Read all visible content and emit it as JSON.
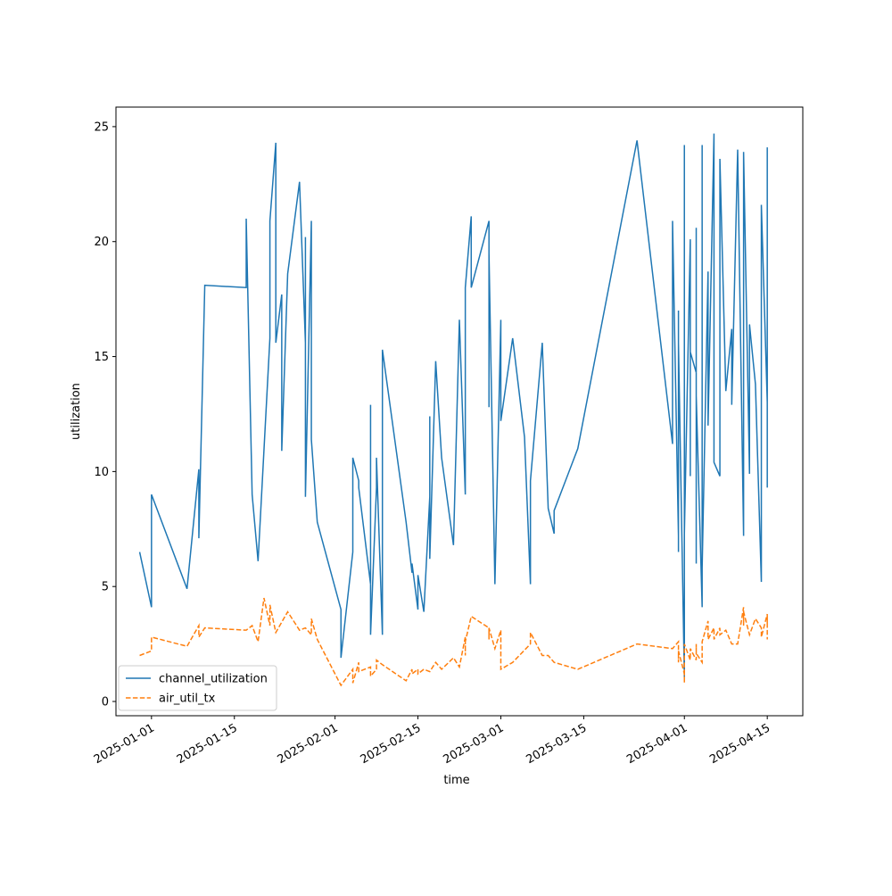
{
  "chart_data": {
    "type": "line",
    "xlabel": "time",
    "ylabel": "utilization",
    "xlim": [
      "2024-12-26",
      "2025-04-21"
    ],
    "xticks": [
      "2025-01-01",
      "2025-01-15",
      "2025-02-01",
      "2025-02-15",
      "2025-03-01",
      "2025-03-15",
      "2025-04-01",
      "2025-04-15"
    ],
    "ylim": [
      -0.62,
      25.85
    ],
    "yticks": [
      0,
      5,
      10,
      15,
      20,
      25
    ],
    "legend": "lower left",
    "series": [
      {
        "name": "channel_utilization",
        "color": "#1f77b4",
        "linestyle": "solid",
        "x": [
          "2024-12-30",
          "2025-01-01",
          "2025-01-01",
          "2025-01-07",
          "2025-01-09",
          "2025-01-09",
          "2025-01-10",
          "2025-01-17",
          "2025-01-17",
          "2025-01-18",
          "2025-01-19",
          "2025-01-21",
          "2025-01-21",
          "2025-01-22",
          "2025-01-22",
          "2025-01-23",
          "2025-01-23",
          "2025-01-24",
          "2025-01-26",
          "2025-01-27",
          "2025-01-27",
          "2025-01-27",
          "2025-01-27",
          "2025-01-28",
          "2025-01-28",
          "2025-01-29",
          "2025-02-02",
          "2025-02-02",
          "2025-02-04",
          "2025-02-04",
          "2025-02-05",
          "2025-02-05",
          "2025-02-07",
          "2025-02-07",
          "2025-02-07",
          "2025-02-08",
          "2025-02-08",
          "2025-02-09",
          "2025-02-09",
          "2025-02-13",
          "2025-02-14",
          "2025-02-14",
          "2025-02-15",
          "2025-02-15",
          "2025-02-16",
          "2025-02-17",
          "2025-02-17",
          "2025-02-17",
          "2025-02-18",
          "2025-02-19",
          "2025-02-21",
          "2025-02-22",
          "2025-02-23",
          "2025-02-23",
          "2025-02-23",
          "2025-02-24",
          "2025-02-24",
          "2025-02-27",
          "2025-02-27",
          "2025-02-27",
          "2025-02-28",
          "2025-03-01",
          "2025-03-01",
          "2025-03-03",
          "2025-03-05",
          "2025-03-06",
          "2025-03-06",
          "2025-03-08",
          "2025-03-09",
          "2025-03-10",
          "2025-03-10",
          "2025-03-14",
          "2025-03-24",
          "2025-03-30",
          "2025-03-30",
          "2025-03-31",
          "2025-03-31",
          "2025-03-31",
          "2025-03-31",
          "2025-03-31",
          "2025-03-31",
          "2025-04-01",
          "2025-04-01",
          "2025-04-01",
          "2025-04-01",
          "2025-04-01",
          "2025-04-02",
          "2025-04-02",
          "2025-04-02",
          "2025-04-02",
          "2025-04-03",
          "2025-04-03",
          "2025-04-03",
          "2025-04-03",
          "2025-04-04",
          "2025-04-04",
          "2025-04-04",
          "2025-04-05",
          "2025-04-05",
          "2025-04-06",
          "2025-04-06",
          "2025-04-06",
          "2025-04-07",
          "2025-04-07",
          "2025-04-08",
          "2025-04-09",
          "2025-04-09",
          "2025-04-10",
          "2025-04-11",
          "2025-04-11",
          "2025-04-11",
          "2025-04-12",
          "2025-04-12",
          "2025-04-13",
          "2025-04-14",
          "2025-04-14",
          "2025-04-14",
          "2025-04-14",
          "2025-04-15",
          "2025-04-15",
          "2025-04-15",
          "2025-04-15",
          "2025-04-15",
          "2025-04-15",
          "2025-04-15"
        ],
        "values": [
          6.5,
          4.1,
          9.0,
          4.9,
          10.1,
          7.1,
          18.1,
          18.0,
          21.0,
          9.0,
          6.1,
          15.8,
          20.9,
          24.3,
          15.6,
          17.7,
          10.9,
          18.6,
          22.6,
          15.6,
          20.2,
          15.6,
          8.9,
          20.9,
          11.4,
          7.8,
          4.0,
          1.9,
          6.5,
          10.6,
          9.6,
          9.3,
          5.1,
          12.9,
          2.9,
          9.3,
          10.6,
          2.9,
          15.3,
          7.8,
          5.6,
          6.0,
          4.0,
          5.5,
          3.9,
          8.9,
          12.4,
          6.2,
          14.8,
          10.6,
          6.8,
          16.6,
          9.0,
          17.0,
          18.0,
          21.1,
          18.0,
          20.9,
          12.8,
          19.5,
          5.1,
          16.6,
          12.2,
          15.8,
          11.5,
          5.1,
          9.6,
          15.6,
          8.4,
          7.3,
          8.3,
          11.0,
          24.4,
          11.2,
          20.9,
          7.2,
          13.8,
          6.5,
          17.0,
          7.0,
          15.6,
          1.0,
          24.2,
          5.0,
          18.0,
          7.3,
          20.1,
          9.8,
          13.3,
          15.2,
          14.3,
          20.6,
          6.0,
          13.3,
          4.1,
          24.2,
          5.8,
          18.7,
          12.0,
          24.7,
          10.9,
          10.4,
          9.8,
          23.6,
          13.5,
          16.2,
          12.9,
          24.0,
          7.2,
          19.7,
          23.9,
          9.9,
          16.4,
          13.8,
          5.2,
          21.0,
          11.4,
          21.6,
          13.0,
          9.3,
          24.1,
          19.1,
          22.6,
          16.0,
          14.5
        ]
      },
      {
        "name": "air_util_tx",
        "color": "#ff7f0e",
        "linestyle": "dashed",
        "x": [
          "2024-12-30",
          "2025-01-01",
          "2025-01-01",
          "2025-01-07",
          "2025-01-09",
          "2025-01-09",
          "2025-01-10",
          "2025-01-17",
          "2025-01-18",
          "2025-01-19",
          "2025-01-20",
          "2025-01-21",
          "2025-01-21",
          "2025-01-22",
          "2025-01-24",
          "2025-01-26",
          "2025-01-27",
          "2025-01-28",
          "2025-01-28",
          "2025-01-29",
          "2025-02-01",
          "2025-02-02",
          "2025-02-04",
          "2025-02-04",
          "2025-02-05",
          "2025-02-05",
          "2025-02-07",
          "2025-02-07",
          "2025-02-08",
          "2025-02-08",
          "2025-02-09",
          "2025-02-13",
          "2025-02-14",
          "2025-02-14",
          "2025-02-15",
          "2025-02-15",
          "2025-02-16",
          "2025-02-17",
          "2025-02-18",
          "2025-02-19",
          "2025-02-21",
          "2025-02-22",
          "2025-02-23",
          "2025-02-23",
          "2025-02-23",
          "2025-02-24",
          "2025-02-27",
          "2025-02-27",
          "2025-02-27",
          "2025-02-28",
          "2025-03-01",
          "2025-03-01",
          "2025-03-03",
          "2025-03-06",
          "2025-03-06",
          "2025-03-08",
          "2025-03-09",
          "2025-03-10",
          "2025-03-14",
          "2025-03-24",
          "2025-03-30",
          "2025-03-31",
          "2025-03-31",
          "2025-03-31",
          "2025-04-01",
          "2025-04-01",
          "2025-04-01",
          "2025-04-02",
          "2025-04-02",
          "2025-04-03",
          "2025-04-03",
          "2025-04-03",
          "2025-04-04",
          "2025-04-04",
          "2025-04-05",
          "2025-04-05",
          "2025-04-06",
          "2025-04-06",
          "2025-04-07",
          "2025-04-07",
          "2025-04-08",
          "2025-04-09",
          "2025-04-10",
          "2025-04-11",
          "2025-04-11",
          "2025-04-11",
          "2025-04-12",
          "2025-04-13",
          "2025-04-14",
          "2025-04-14",
          "2025-04-15",
          "2025-04-15",
          "2025-04-15",
          "2025-04-15"
        ],
        "values": [
          2.0,
          2.2,
          2.8,
          2.4,
          3.3,
          2.8,
          3.2,
          3.1,
          3.3,
          2.6,
          4.5,
          3.3,
          4.2,
          3.0,
          3.9,
          3.1,
          3.2,
          2.9,
          3.6,
          2.7,
          1.2,
          0.7,
          1.4,
          0.8,
          1.7,
          1.3,
          1.5,
          1.1,
          1.4,
          1.8,
          1.6,
          0.9,
          1.4,
          1.2,
          1.4,
          1.2,
          1.4,
          1.3,
          1.7,
          1.4,
          1.9,
          1.5,
          2.8,
          2.0,
          2.6,
          3.7,
          3.2,
          2.7,
          3.2,
          2.3,
          3.1,
          1.4,
          1.7,
          2.5,
          3.0,
          2.0,
          2.0,
          1.7,
          1.4,
          2.5,
          2.3,
          2.6,
          1.7,
          2.2,
          1.2,
          0.8,
          2.5,
          1.8,
          2.3,
          1.8,
          2.5,
          2.1,
          1.7,
          2.6,
          3.5,
          2.7,
          3.2,
          2.7,
          3.2,
          2.9,
          3.1,
          2.5,
          2.5,
          4.1,
          3.3,
          3.9,
          2.9,
          3.6,
          3.2,
          2.8,
          3.8,
          3.3,
          3.7,
          2.7
        ]
      }
    ]
  }
}
